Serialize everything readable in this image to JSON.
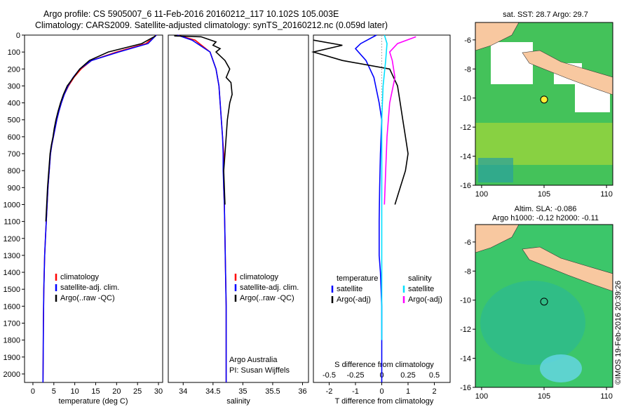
{
  "titles": {
    "line1": "Argo profile: CS 5905007_6 11-Feb-2016 20160212_117 10.102S 105.003E",
    "line2": "Climatology: CARS2009. Satellite-adjusted climatology: synTS_20160212.nc (0.059d later)"
  },
  "credit": {
    "agency": "Argo Australia",
    "pi": "PI: Susan Wijffels",
    "stamp": "©IMOS 19-Feb-2016 20:39:26"
  },
  "colors": {
    "climatology": "#ff0000",
    "satellite": "#0000ff",
    "argo": "#000000",
    "sat_salinity": "#00e0ff",
    "argo_salinity": "#ff00ff"
  },
  "chart_data": [
    {
      "type": "line",
      "xlabel": "temperature (deg C)",
      "ylabel": "",
      "xlim": [
        -2,
        31
      ],
      "ylim": [
        2050,
        0
      ],
      "xticks": [
        0,
        5,
        10,
        15,
        20,
        25,
        30
      ],
      "yticks": [
        0,
        100,
        200,
        300,
        400,
        500,
        600,
        700,
        800,
        900,
        1000,
        1100,
        1200,
        1300,
        1400,
        1500,
        1600,
        1700,
        1800,
        1900,
        2000
      ],
      "legend": {
        "position": "lower-center",
        "entries": [
          "climatology",
          "satellite-adj. clim.",
          "Argo(..raw -QC)"
        ]
      },
      "series": [
        {
          "name": "climatology",
          "color": "#ff0000",
          "x": [
            29.5,
            27,
            20,
            14,
            11.5,
            9.8,
            8.5,
            7.5,
            6.8,
            6.2,
            5.7,
            5.3,
            4.9,
            4.5,
            4.2,
            3.9,
            3.6,
            3.4,
            3.2,
            3.0,
            2.8,
            2.7,
            2.6,
            2.5,
            2.45,
            2.4
          ],
          "y": [
            0,
            50,
            100,
            150,
            200,
            250,
            300,
            350,
            400,
            450,
            500,
            550,
            600,
            650,
            700,
            800,
            900,
            1000,
            1100,
            1200,
            1300,
            1400,
            1500,
            1700,
            1900,
            2050
          ]
        },
        {
          "name": "satellite-adj. clim.",
          "color": "#0000ff",
          "x": [
            29.5,
            27.5,
            20.5,
            14,
            11.2,
            9.6,
            8.4,
            7.5,
            6.8,
            6.2,
            5.7,
            5.3,
            4.9,
            4.5,
            4.2,
            3.9,
            3.6,
            3.4,
            3.2,
            3.0,
            2.8,
            2.7,
            2.6,
            2.5,
            2.45,
            2.4
          ],
          "y": [
            0,
            50,
            100,
            150,
            200,
            250,
            300,
            350,
            400,
            450,
            500,
            550,
            600,
            650,
            700,
            800,
            900,
            1000,
            1100,
            1200,
            1300,
            1400,
            1500,
            1700,
            1900,
            2050
          ]
        },
        {
          "name": "Argo(..raw -QC)",
          "color": "#000000",
          "x": [
            29.3,
            26,
            18,
            13.5,
            11.2,
            9.7,
            8.2,
            7.3,
            6.6,
            6.0,
            5.5,
            5.1,
            4.8,
            4.4,
            4.1,
            3.8,
            3.5,
            3.3,
            3.1
          ],
          "y": [
            5,
            50,
            100,
            150,
            200,
            250,
            300,
            350,
            400,
            450,
            500,
            550,
            600,
            650,
            700,
            800,
            900,
            1000,
            1100
          ]
        }
      ]
    },
    {
      "type": "line",
      "xlabel": "salinity",
      "ylabel": "",
      "xlim": [
        33.75,
        36.1
      ],
      "ylim": [
        2050,
        0
      ],
      "xticks": [
        34,
        34.5,
        35,
        35.5,
        36
      ],
      "legend": {
        "position": "lower-center",
        "entries": [
          "climatology",
          "satellite-adj. clim.",
          "Argo(..raw -QC)"
        ]
      },
      "series": [
        {
          "name": "climatology",
          "color": "#ff0000",
          "x": [
            33.9,
            34.2,
            34.45,
            34.55,
            34.6,
            34.62,
            34.64,
            34.66,
            34.68,
            34.68,
            34.68,
            34.69,
            34.7,
            34.71,
            34.72,
            34.72,
            34.72
          ],
          "y": [
            0,
            30,
            100,
            200,
            300,
            400,
            500,
            600,
            700,
            800,
            900,
            1000,
            1200,
            1400,
            1600,
            1800,
            2050
          ]
        },
        {
          "name": "satellite-adj. clim.",
          "color": "#0000ff",
          "x": [
            33.9,
            34.15,
            34.45,
            34.55,
            34.6,
            34.62,
            34.64,
            34.66,
            34.67,
            34.67,
            34.68,
            34.69,
            34.7,
            34.71,
            34.72,
            34.72,
            34.72
          ],
          "y": [
            0,
            30,
            100,
            200,
            300,
            400,
            500,
            600,
            700,
            800,
            900,
            1000,
            1200,
            1400,
            1600,
            1800,
            2050
          ]
        },
        {
          "name": "Argo(..raw -QC)",
          "color": "#000000",
          "x": [
            33.85,
            34.3,
            34.55,
            34.5,
            34.62,
            34.55,
            34.7,
            34.78,
            34.72,
            34.8,
            34.82,
            34.78,
            34.74,
            34.72,
            34.7,
            34.68,
            34.69,
            34.7
          ],
          "y": [
            5,
            10,
            40,
            60,
            80,
            100,
            150,
            200,
            250,
            280,
            350,
            400,
            500,
            600,
            700,
            800,
            900,
            1000
          ]
        }
      ]
    },
    {
      "type": "line",
      "xlabel": "T difference from climatology",
      "xlabel_top": "S difference from climatology",
      "xlim": [
        -2.6,
        2.6
      ],
      "ylim": [
        2050,
        0
      ],
      "xticks_bottom": [
        -2,
        -1,
        0,
        1,
        2
      ],
      "xticks_top": [
        "-0.5",
        "-0.25",
        "0",
        "0.25",
        "0.5"
      ],
      "legend": {
        "position": "lower-center",
        "headers": [
          "temperature",
          "salinity"
        ],
        "entries": [
          "satellite",
          "Argo(-adj)",
          "satellite",
          "Argo(-adj)"
        ]
      },
      "series": [
        {
          "name": "satellite",
          "color": "#0000ff",
          "x": [
            -0.2,
            -0.8,
            -1.0,
            -0.6,
            -0.3,
            -0.1,
            0,
            -0.05,
            -0.08,
            -0.1,
            -0.1,
            -0.05,
            0,
            0,
            0
          ],
          "y": [
            0,
            50,
            80,
            150,
            250,
            400,
            500,
            700,
            900,
            1100,
            1300,
            1400,
            1600,
            1800,
            2050
          ]
        },
        {
          "name": "Argo(-adj)",
          "color": "#000000",
          "x": [
            -2.6,
            -1.5,
            -2.6,
            -1.5,
            0.3,
            0.6,
            0.7,
            0.8,
            0.9,
            1.0,
            0.9,
            0.7,
            0.5
          ],
          "y": [
            30,
            60,
            100,
            150,
            200,
            300,
            400,
            500,
            600,
            700,
            800,
            900,
            1000
          ]
        },
        {
          "name": "satellite",
          "color": "#00e0ff",
          "x": [
            0.1,
            0.2,
            0.15,
            0.05,
            0,
            0,
            0,
            0
          ],
          "y": [
            0,
            50,
            150,
            300,
            500,
            800,
            1200,
            1800
          ]
        },
        {
          "name": "Argo(-adj)",
          "color": "#ff00ff",
          "x": [
            1.3,
            0.6,
            0.3,
            0.4,
            0.5,
            0.3,
            0.2,
            0.15,
            0.1
          ],
          "y": [
            10,
            50,
            100,
            150,
            250,
            400,
            600,
            800,
            1000
          ]
        }
      ]
    },
    {
      "type": "heatmap",
      "title": "sat. SST: 28.7 Argo: 29.7",
      "xlim": [
        99.5,
        110.5
      ],
      "ylim": [
        -16,
        -4.8
      ],
      "xticks": [
        100,
        105,
        110
      ],
      "yticks": [
        -6,
        -8,
        -10,
        -12,
        -14,
        -16
      ],
      "marker": {
        "lon": 105.003,
        "lat": -10.102
      }
    },
    {
      "type": "heatmap",
      "title": "Altim. SLA: -0.086",
      "subtitle": "Argo h1000: -0.12 h2000: -0.11",
      "xlim": [
        99.5,
        110.5
      ],
      "ylim": [
        -16,
        -4.8
      ],
      "xticks": [
        100,
        105,
        110
      ],
      "yticks": [
        -6,
        -8,
        -10,
        -12,
        -14,
        -16
      ],
      "marker": {
        "lon": 105.003,
        "lat": -10.102
      }
    }
  ]
}
